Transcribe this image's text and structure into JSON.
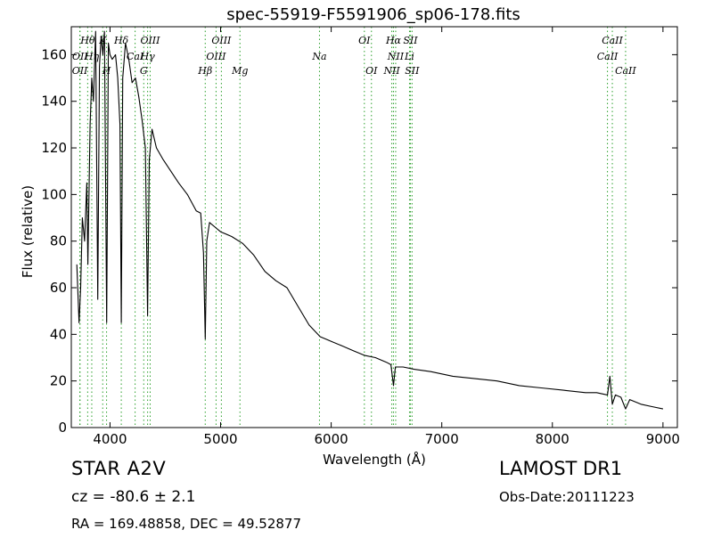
{
  "figure": {
    "title": "spec-55919-F5591906_sp06-178.fits",
    "object_class": "STAR   A2V",
    "survey": "LAMOST DR1",
    "redshift_text": "cz = -80.6 ± 2.1",
    "obs_date_text": "Obs-Date:20111223",
    "coords_text": "RA = 169.48858, DEC = 49.52877"
  },
  "chart_data": {
    "type": "line",
    "title": "spec-55919-F5591906_sp06-178.fits",
    "xlabel": "Wavelength (Å)",
    "ylabel": "Flux (relative)",
    "xlim": [
      3650,
      9130
    ],
    "ylim": [
      0,
      172
    ],
    "xticks": [
      4000,
      5000,
      6000,
      7000,
      8000,
      9000
    ],
    "yticks": [
      0,
      20,
      40,
      60,
      80,
      100,
      120,
      140,
      160
    ],
    "grid": false,
    "legend": "none",
    "line_color": "#000000",
    "marker_color": "#2ca02c",
    "series": [
      {
        "x": [
          3700,
          3720,
          3735,
          3750,
          3770,
          3790,
          3800,
          3820,
          3835,
          3850,
          3870,
          3889,
          3905,
          3920,
          3935,
          3950,
          3970,
          3985,
          4000,
          4020,
          4050,
          4070,
          4090,
          4102,
          4115,
          4140,
          4170,
          4200,
          4230,
          4260,
          4290,
          4320,
          4340,
          4355,
          4380,
          4420,
          4480,
          4550,
          4620,
          4700,
          4780,
          4820,
          4845,
          4861,
          4875,
          4900,
          4950,
          5000,
          5100,
          5200,
          5300,
          5400,
          5500,
          5600,
          5700,
          5800,
          5900,
          6000,
          6100,
          6200,
          6300,
          6400,
          6500,
          6540,
          6563,
          6580,
          6650,
          6750,
          6900,
          7100,
          7300,
          7500,
          7700,
          7900,
          8100,
          8300,
          8400,
          8498,
          8520,
          8542,
          8570,
          8620,
          8662,
          8700,
          8800,
          8900,
          9000
        ],
        "y": [
          70,
          45,
          60,
          90,
          80,
          105,
          70,
          130,
          150,
          140,
          170,
          55,
          155,
          168,
          160,
          170,
          45,
          165,
          160,
          158,
          160,
          150,
          130,
          45,
          150,
          165,
          158,
          148,
          150,
          142,
          132,
          120,
          48,
          115,
          128,
          120,
          115,
          110,
          105,
          100,
          93,
          92,
          75,
          38,
          80,
          88,
          86,
          84,
          82,
          79,
          74,
          67,
          63,
          60,
          52,
          44,
          39,
          37,
          35,
          33,
          31,
          30,
          28,
          27,
          18,
          26,
          26,
          25,
          24,
          22,
          21,
          20,
          18,
          17,
          16,
          15,
          15,
          14,
          22,
          10,
          14,
          13,
          8,
          12,
          10,
          9,
          8
        ]
      }
    ],
    "lines": [
      {
        "name": "OII",
        "wavelength": 3727,
        "row": 2
      },
      {
        "name": "OII",
        "wavelength": 3729,
        "row": 1
      },
      {
        "name": "Hθ",
        "wavelength": 3798,
        "row": 0
      },
      {
        "name": "Hη",
        "wavelength": 3835,
        "row": 1
      },
      {
        "name": "K",
        "wavelength": 3934,
        "row": 0
      },
      {
        "name": "H",
        "wavelength": 3969,
        "row": 2
      },
      {
        "name": "Hδ",
        "wavelength": 4102,
        "row": 0
      },
      {
        "name": "CaI",
        "wavelength": 4227,
        "row": 1
      },
      {
        "name": "OIII",
        "wavelength": 4363,
        "row": 0
      },
      {
        "name": "Hγ",
        "wavelength": 4340,
        "row": 1
      },
      {
        "name": "G",
        "wavelength": 4305,
        "row": 2
      },
      {
        "name": "Hβ",
        "wavelength": 4861,
        "row": 2
      },
      {
        "name": "OIII",
        "wavelength": 4959,
        "row": 1
      },
      {
        "name": "OIII",
        "wavelength": 5007,
        "row": 0
      },
      {
        "name": "Mg",
        "wavelength": 5175,
        "row": 2
      },
      {
        "name": "Na",
        "wavelength": 5894,
        "row": 1
      },
      {
        "name": "OI",
        "wavelength": 6300,
        "row": 0
      },
      {
        "name": "OI",
        "wavelength": 6364,
        "row": 2
      },
      {
        "name": "NII",
        "wavelength": 6548,
        "row": 2
      },
      {
        "name": "Hα",
        "wavelength": 6563,
        "row": 0
      },
      {
        "name": "NII",
        "wavelength": 6583,
        "row": 1
      },
      {
        "name": "Li",
        "wavelength": 6708,
        "row": 1
      },
      {
        "name": "SII",
        "wavelength": 6716,
        "row": 0
      },
      {
        "name": "SII",
        "wavelength": 6731,
        "row": 2
      },
      {
        "name": "CaII",
        "wavelength": 8498,
        "row": 1
      },
      {
        "name": "CaII",
        "wavelength": 8542,
        "row": 0
      },
      {
        "name": "CaII",
        "wavelength": 8662,
        "row": 2
      }
    ]
  }
}
